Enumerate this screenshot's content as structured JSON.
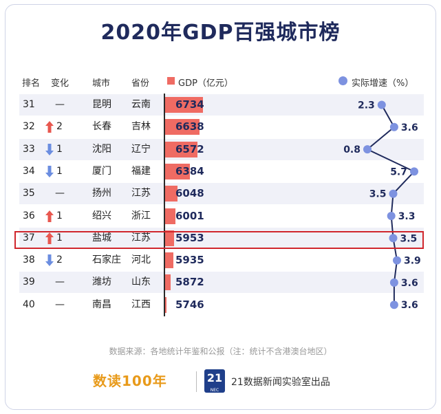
{
  "title": "2020年GDP百强城市榜",
  "headers": {
    "rank": "排名",
    "change": "变化",
    "city": "城市",
    "province": "省份",
    "gdp": "GDP（亿元）",
    "growth": "实际增速（%）"
  },
  "rows": [
    {
      "rank": "31",
      "change": "—",
      "dir": "none",
      "city": "昆明",
      "province": "云南",
      "gdp": "6734",
      "growth": "2.3"
    },
    {
      "rank": "32",
      "change": "2",
      "dir": "up",
      "city": "长春",
      "province": "吉林",
      "gdp": "6638",
      "growth": "3.6"
    },
    {
      "rank": "33",
      "change": "1",
      "dir": "down",
      "city": "沈阳",
      "province": "辽宁",
      "gdp": "6572",
      "growth": "0.8"
    },
    {
      "rank": "34",
      "change": "1",
      "dir": "down",
      "city": "厦门",
      "province": "福建",
      "gdp": "6384",
      "growth": "5.7"
    },
    {
      "rank": "35",
      "change": "—",
      "dir": "none",
      "city": "扬州",
      "province": "江苏",
      "gdp": "6048",
      "growth": "3.5"
    },
    {
      "rank": "36",
      "change": "1",
      "dir": "up",
      "city": "绍兴",
      "province": "浙江",
      "gdp": "6001",
      "growth": "3.3"
    },
    {
      "rank": "37",
      "change": "1",
      "dir": "up",
      "city": "盐城",
      "province": "江苏",
      "gdp": "5953",
      "growth": "3.5"
    },
    {
      "rank": "38",
      "change": "2",
      "dir": "down",
      "city": "石家庄",
      "province": "河北",
      "gdp": "5935",
      "growth": "3.9"
    },
    {
      "rank": "39",
      "change": "—",
      "dir": "none",
      "city": "潍坊",
      "province": "山东",
      "gdp": "5872",
      "growth": "3.6"
    },
    {
      "rank": "40",
      "change": "—",
      "dir": "none",
      "city": "南昌",
      "province": "江西",
      "gdp": "5746",
      "growth": "3.6"
    }
  ],
  "highlight_rank": "37",
  "source": "数据来源：各地统计年鉴和公报（注：统计不含港澳台地区）",
  "footer": {
    "logo": "数读100年",
    "badge": "21",
    "badge_sub": "NEC",
    "maker": "21数据新闻实验室出品"
  },
  "colors": {
    "title": "#1f2a5c",
    "bar": "#ef6b63",
    "growth_point": "#7d92e0",
    "growth_line": "#1f2a5c",
    "up_arrow": "#e8574f",
    "down_arrow": "#6b8de0",
    "highlight": "#d0262c"
  },
  "chart_data": {
    "type": "table",
    "title": "2020年GDP百强城市榜",
    "columns": [
      "排名",
      "变化",
      "城市",
      "省份",
      "GDP（亿元）",
      "实际增速（%）"
    ],
    "categories": [
      "昆明",
      "长春",
      "沈阳",
      "厦门",
      "扬州",
      "绍兴",
      "盐城",
      "石家庄",
      "潍坊",
      "南昌"
    ],
    "series": [
      {
        "name": "GDP（亿元）",
        "type": "bar",
        "values": [
          6734,
          6638,
          6572,
          6384,
          6048,
          6001,
          5953,
          5935,
          5872,
          5746
        ]
      },
      {
        "name": "实际增速（%）",
        "type": "line",
        "values": [
          2.3,
          3.6,
          0.8,
          5.7,
          3.5,
          3.3,
          3.5,
          3.9,
          3.6,
          3.6
        ]
      }
    ],
    "gdp_axis": [
      5700,
      6800
    ],
    "growth_axis": [
      0,
      6.5
    ]
  }
}
